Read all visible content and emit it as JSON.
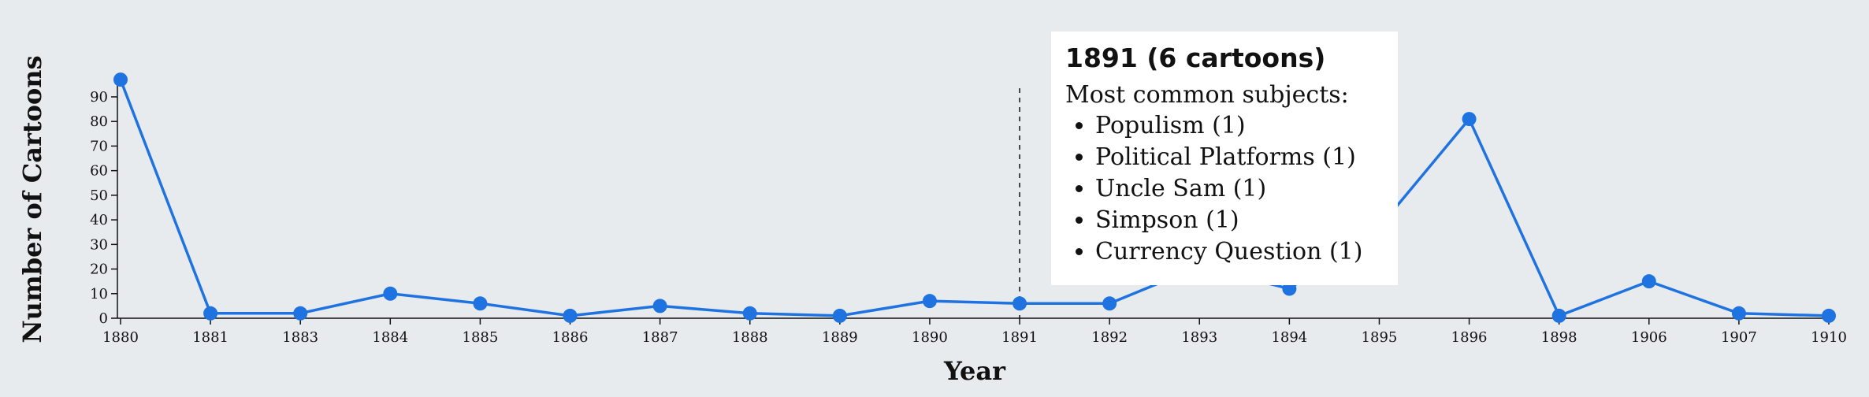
{
  "chart_data": {
    "type": "line",
    "xlabel": "Year",
    "ylabel": "Number of Cartoons",
    "ylim": [
      0,
      98
    ],
    "y_ticks": [
      0,
      10,
      20,
      30,
      40,
      50,
      60,
      70,
      80,
      90
    ],
    "categories": [
      "1880",
      "1881",
      "1883",
      "1884",
      "1885",
      "1886",
      "1887",
      "1888",
      "1889",
      "1890",
      "1891",
      "1892",
      "1893",
      "1894",
      "1895",
      "1896",
      "1898",
      "1906",
      "1907",
      "1910"
    ],
    "values": [
      97,
      2,
      2,
      10,
      6,
      1,
      5,
      2,
      1,
      7,
      6,
      6,
      21,
      12,
      37,
      81,
      1,
      15,
      2,
      1
    ],
    "grid": false,
    "series_color": "#1f73e0",
    "highlight": {
      "category": "1891",
      "title": "1891 (6 cartoons)",
      "subtitle": "Most common subjects:",
      "items": [
        "Populism (1)",
        "Political Platforms (1)",
        "Uncle Sam (1)",
        "Simpson (1)",
        "Currency Question (1)"
      ]
    }
  }
}
